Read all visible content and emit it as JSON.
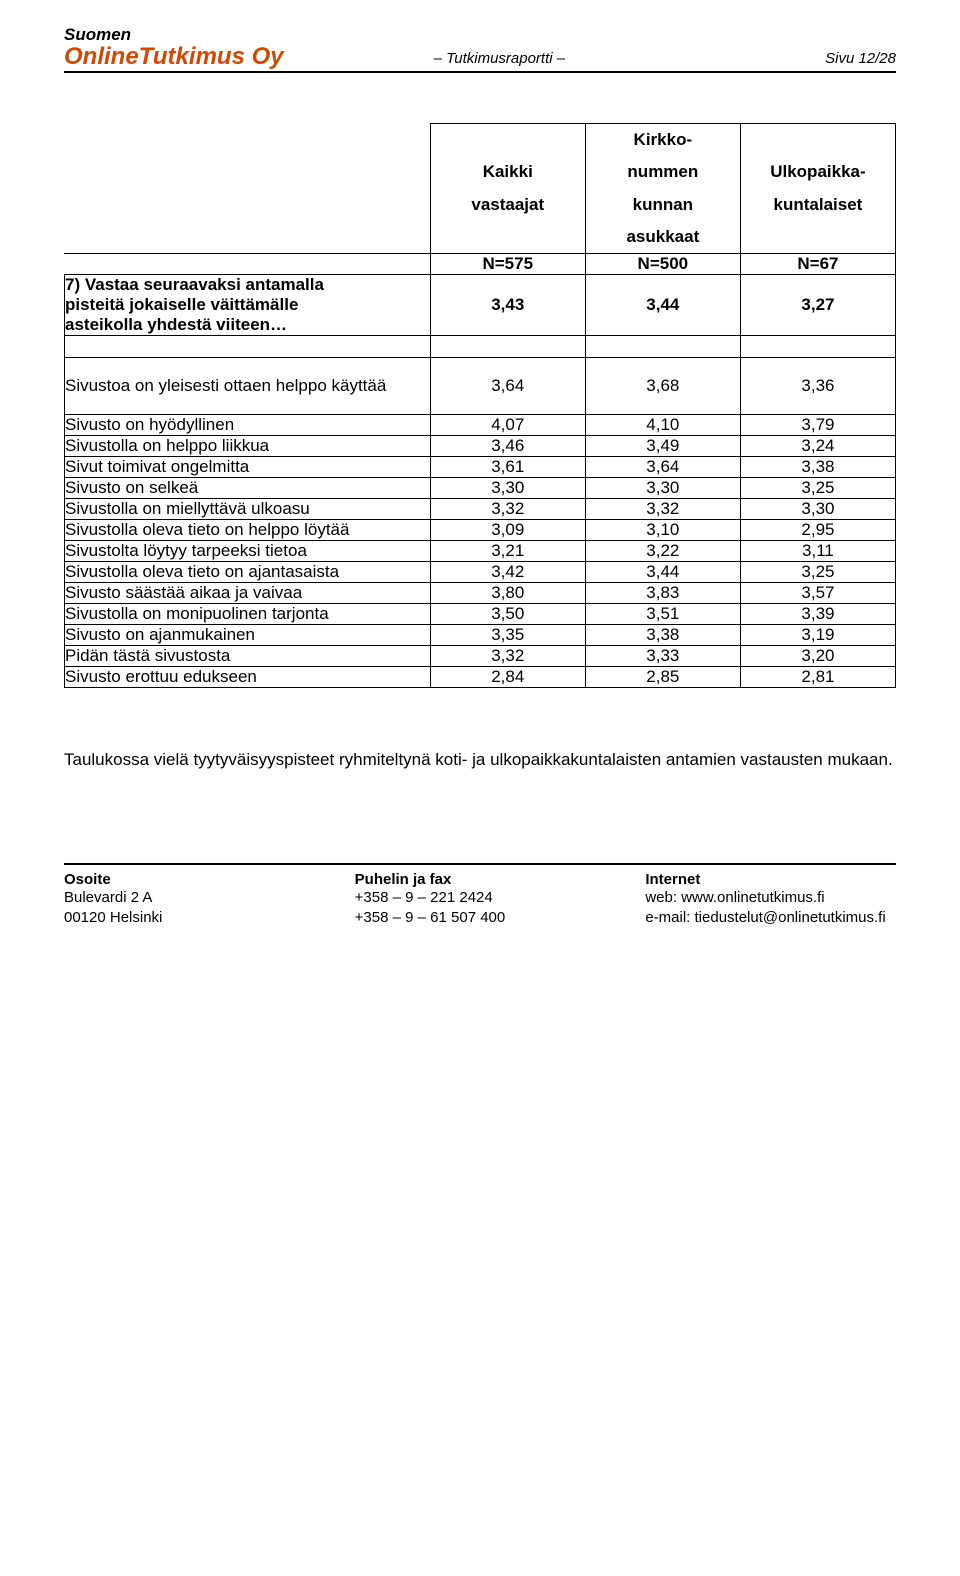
{
  "header": {
    "brand_line1": "Suomen",
    "brand_line2": "OnlineTutkimus Oy",
    "center": "– Tutkimusraportti –",
    "page": "Sivu 12/28"
  },
  "table": {
    "col_headers": {
      "c1_l1": "Kaikki",
      "c1_l2": "vastaajat",
      "c2_l1": "Kirkko-",
      "c2_l2": "nummen",
      "c2_l3": "kunnan",
      "c2_l4": "asukkaat",
      "c3_l1": "Ulkopaikka-",
      "c3_l2": "kuntalaiset"
    },
    "n_row": {
      "c1": "N=575",
      "c2": "N=500",
      "c3": "N=67"
    },
    "question_row": {
      "label_l1": "7) Vastaa seuraavaksi antamalla",
      "label_l2": "pisteitä jokaiselle väittämälle",
      "label_l3": "asteikolla yhdestä viiteen…",
      "c1": "3,43",
      "c2": "3,44",
      "c3": "3,27"
    },
    "rows": [
      {
        "label": "Sivustoa on yleisesti ottaen helppo käyttää",
        "c1": "3,64",
        "c2": "3,68",
        "c3": "3,36",
        "tall": true
      },
      {
        "label": "Sivusto on hyödyllinen",
        "c1": "4,07",
        "c2": "4,10",
        "c3": "3,79"
      },
      {
        "label": "Sivustolla on helppo liikkua",
        "c1": "3,46",
        "c2": "3,49",
        "c3": "3,24"
      },
      {
        "label": "Sivut toimivat ongelmitta",
        "c1": "3,61",
        "c2": "3,64",
        "c3": "3,38"
      },
      {
        "label": "Sivusto on selkeä",
        "c1": "3,30",
        "c2": "3,30",
        "c3": "3,25"
      },
      {
        "label": "Sivustolla on miellyttävä ulkoasu",
        "c1": "3,32",
        "c2": "3,32",
        "c3": "3,30"
      },
      {
        "label": "Sivustolla oleva tieto on helppo löytää",
        "c1": "3,09",
        "c2": "3,10",
        "c3": "2,95"
      },
      {
        "label": "Sivustolta löytyy tarpeeksi tietoa",
        "c1": "3,21",
        "c2": "3,22",
        "c3": "3,11"
      },
      {
        "label": "Sivustolla oleva tieto on ajantasaista",
        "c1": "3,42",
        "c2": "3,44",
        "c3": "3,25"
      },
      {
        "label": "Sivusto säästää aikaa ja vaivaa",
        "c1": "3,80",
        "c2": "3,83",
        "c3": "3,57"
      },
      {
        "label": "Sivustolla on monipuolinen tarjonta",
        "c1": "3,50",
        "c2": "3,51",
        "c3": "3,39"
      },
      {
        "label": "Sivusto on ajanmukainen",
        "c1": "3,35",
        "c2": "3,38",
        "c3": "3,19"
      },
      {
        "label": "Pidän tästä sivustosta",
        "c1": "3,32",
        "c2": "3,33",
        "c3": "3,20"
      },
      {
        "label": "Sivusto erottuu edukseen",
        "c1": "2,84",
        "c2": "2,85",
        "c3": "2,81"
      }
    ]
  },
  "caption": "Taulukossa vielä tyytyväisyyspisteet ryhmiteltynä koti- ja ulkopaikkakuntalaisten antamien vastausten mukaan.",
  "footer": {
    "col1": {
      "title": "Osoite",
      "l1": "Bulevardi 2 A",
      "l2": "00120 Helsinki"
    },
    "col2": {
      "title": "Puhelin ja fax",
      "l1": "+358 – 9 – 221 2424",
      "l2": "+358 – 9 – 61 507 400"
    },
    "col3": {
      "title": "Internet",
      "l1": "web: www.onlinetutkimus.fi",
      "l2": "e-mail: tiedustelut@onlinetutkimus.fi"
    }
  },
  "colors": {
    "accent": "#d14900",
    "text": "#000000",
    "bg": "#ffffff"
  }
}
